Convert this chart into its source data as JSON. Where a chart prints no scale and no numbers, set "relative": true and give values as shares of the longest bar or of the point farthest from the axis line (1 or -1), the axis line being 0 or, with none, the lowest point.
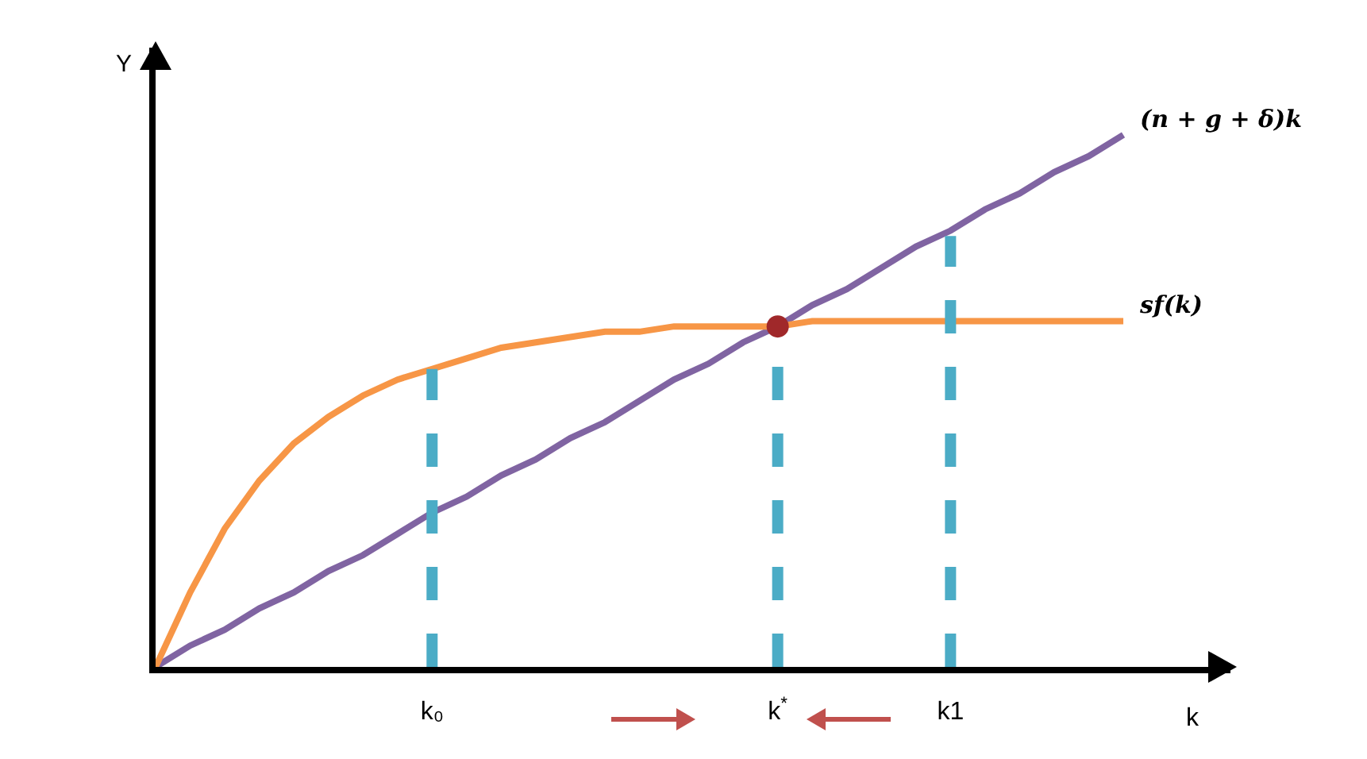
{
  "chart_data": {
    "type": "line",
    "relative": true,
    "xlabel": "k",
    "ylabel": "Y",
    "marker": "none",
    "categories": [
      null,
      null,
      null,
      null,
      null,
      null,
      null,
      null,
      "k₀",
      null,
      null,
      null,
      null,
      null,
      null,
      null,
      null,
      null,
      "k$^{*}$",
      null,
      null,
      null,
      null,
      "k1",
      null,
      null,
      null,
      null,
      null
    ],
    "series": [
      {
        "name": "(n + g + δ)k",
        "color": "#8064a2",
        "values": [
          0,
          0.04,
          0.07,
          0.11,
          0.14,
          0.18,
          0.21,
          0.25,
          0.29,
          0.32,
          0.36,
          0.39,
          0.43,
          0.46,
          0.5,
          0.54,
          0.57,
          0.61,
          0.64,
          0.68,
          0.71,
          0.75,
          0.79,
          0.82,
          0.86,
          0.89,
          0.93,
          0.96,
          1
        ]
      },
      {
        "name": "sf(k)",
        "color": "#f79646",
        "values": [
          0,
          0.14,
          0.26,
          0.35,
          0.42,
          0.47,
          0.51,
          0.54,
          0.56,
          0.58,
          0.6,
          0.61,
          0.62,
          0.63,
          0.63,
          0.64,
          0.64,
          0.64,
          0.64,
          0.65,
          0.65,
          0.65,
          0.65,
          0.65,
          0.65,
          0.65,
          0.65,
          0.65,
          0.65
        ]
      },
      {
        "color": "#4bacc6",
        "line_style": "dashed",
        "x": [
          "k₀",
          "k₀"
        ],
        "values": [
          0,
          0.56
        ]
      },
      {
        "color": "#4bacc6",
        "line_style": "dashed",
        "x": [
          "k$^{*}$",
          "k$^{*}$"
        ],
        "values": [
          0,
          0.64
        ]
      },
      {
        "color": "#4bacc6",
        "line_style": "dashed",
        "x": [
          "k1",
          "k1"
        ],
        "values": [
          0,
          0.81
        ]
      },
      {
        "type": "scatter",
        "marker": "circle",
        "color": "#a0282a",
        "x": [
          "k$^{*}$"
        ],
        "values": [
          0.64
        ]
      }
    ]
  }
}
